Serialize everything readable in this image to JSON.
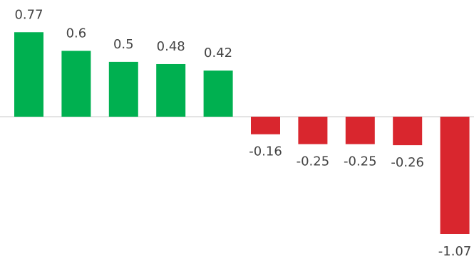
{
  "chart_data": {
    "type": "bar",
    "categories": [
      null,
      null,
      null,
      null,
      null,
      null,
      null,
      null,
      null,
      null
    ],
    "values": [
      0.77,
      0.6,
      0.5,
      0.48,
      0.42,
      -0.16,
      -0.25,
      -0.25,
      -0.26,
      -1.07
    ],
    "positive_color": "#00b050",
    "negative_color": "#d9262e"
  }
}
